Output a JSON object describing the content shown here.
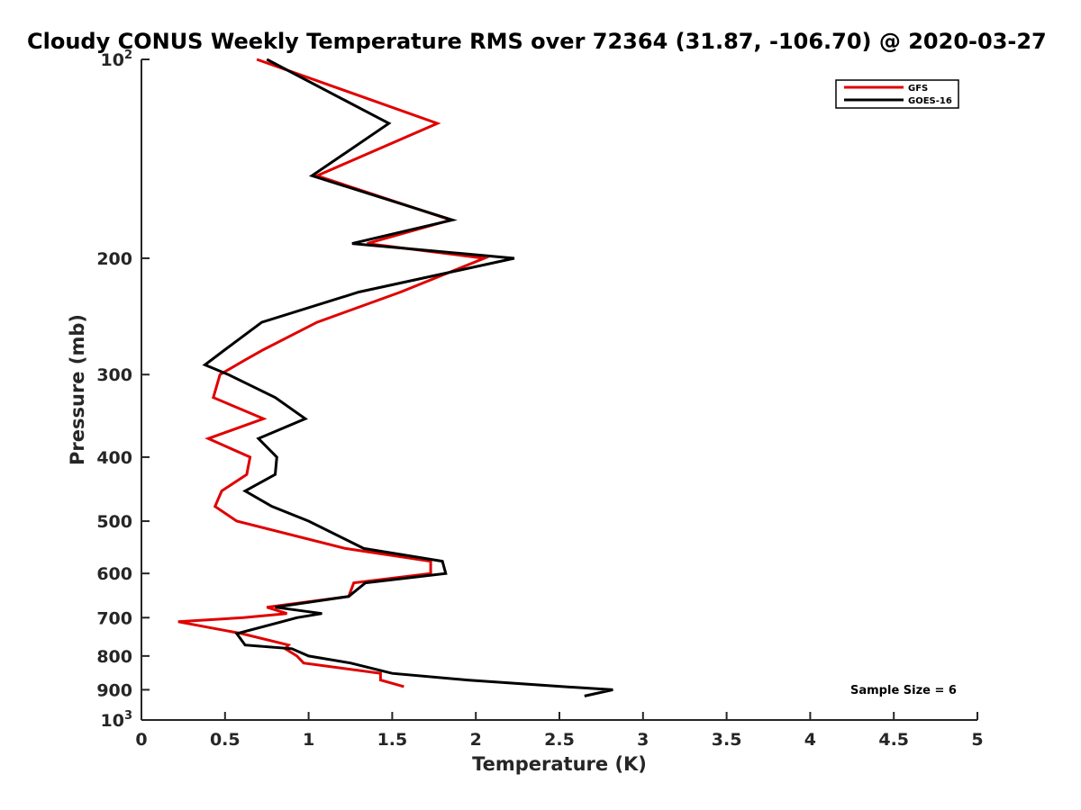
{
  "chart_data": {
    "type": "line",
    "title": "Cloudy CONUS Weekly Temperature RMS over 72364 (31.87, -106.70) @ 2020-03-27",
    "xlabel": "Temperature (K)",
    "ylabel": "Pressure (mb)",
    "xlim": [
      0,
      5
    ],
    "ylim": [
      100,
      1000
    ],
    "y_scale": "log",
    "y_reversed": true,
    "x_ticks": [
      "0",
      "0.5",
      "1",
      "1.5",
      "2",
      "2.5",
      "3",
      "3.5",
      "4",
      "4.5",
      "5"
    ],
    "y_ticks": [
      {
        "value": 100,
        "base": "10",
        "exp": "2"
      },
      {
        "value": 200,
        "label": "200"
      },
      {
        "value": 300,
        "label": "300"
      },
      {
        "value": 400,
        "label": "400"
      },
      {
        "value": 500,
        "label": "500"
      },
      {
        "value": 600,
        "label": "600"
      },
      {
        "value": 700,
        "label": "700"
      },
      {
        "value": 800,
        "label": "800"
      },
      {
        "value": 900,
        "label": "900"
      },
      {
        "value": 1000,
        "base": "10",
        "exp": "3"
      }
    ],
    "grid": false,
    "legend_position": "top-right",
    "annotation": "Sample Size = 6",
    "series": [
      {
        "name": "GFS",
        "color": "#e00000",
        "points": [
          [
            0.69,
            100
          ],
          [
            1.77,
            125
          ],
          [
            1.05,
            150
          ],
          [
            1.85,
            175
          ],
          [
            1.35,
            190
          ],
          [
            2.05,
            200
          ],
          [
            1.55,
            225
          ],
          [
            1.05,
            250
          ],
          [
            0.73,
            275
          ],
          [
            0.62,
            285
          ],
          [
            0.47,
            300
          ],
          [
            0.43,
            325
          ],
          [
            0.73,
            350
          ],
          [
            0.4,
            375
          ],
          [
            0.65,
            400
          ],
          [
            0.63,
            425
          ],
          [
            0.48,
            450
          ],
          [
            0.44,
            475
          ],
          [
            0.57,
            500
          ],
          [
            1.22,
            550
          ],
          [
            1.73,
            575
          ],
          [
            1.73,
            600
          ],
          [
            1.27,
            620
          ],
          [
            1.24,
            650
          ],
          [
            0.75,
            675
          ],
          [
            0.87,
            690
          ],
          [
            0.61,
            700
          ],
          [
            0.22,
            710
          ],
          [
            0.6,
            740
          ],
          [
            0.88,
            770
          ],
          [
            0.86,
            780
          ],
          [
            0.93,
            800
          ],
          [
            0.97,
            820
          ],
          [
            1.43,
            850
          ],
          [
            1.43,
            870
          ],
          [
            1.57,
            890
          ]
        ]
      },
      {
        "name": "GOES-16",
        "color": "#000000",
        "points": [
          [
            0.75,
            100
          ],
          [
            1.48,
            125
          ],
          [
            1.02,
            150
          ],
          [
            1.86,
            175
          ],
          [
            1.26,
            190
          ],
          [
            2.23,
            200
          ],
          [
            1.3,
            225
          ],
          [
            0.72,
            250
          ],
          [
            0.5,
            275
          ],
          [
            0.38,
            290
          ],
          [
            0.52,
            300
          ],
          [
            0.8,
            325
          ],
          [
            0.98,
            350
          ],
          [
            0.7,
            375
          ],
          [
            0.81,
            400
          ],
          [
            0.8,
            425
          ],
          [
            0.62,
            450
          ],
          [
            0.78,
            475
          ],
          [
            1.0,
            500
          ],
          [
            1.33,
            550
          ],
          [
            1.8,
            575
          ],
          [
            1.82,
            600
          ],
          [
            1.34,
            620
          ],
          [
            1.24,
            650
          ],
          [
            0.8,
            675
          ],
          [
            1.08,
            690
          ],
          [
            0.93,
            700
          ],
          [
            0.84,
            710
          ],
          [
            0.57,
            740
          ],
          [
            0.62,
            770
          ],
          [
            0.9,
            780
          ],
          [
            1.0,
            800
          ],
          [
            1.25,
            820
          ],
          [
            1.5,
            850
          ],
          [
            1.95,
            870
          ],
          [
            2.52,
            890
          ],
          [
            2.82,
            900
          ],
          [
            2.65,
            920
          ]
        ]
      }
    ]
  }
}
